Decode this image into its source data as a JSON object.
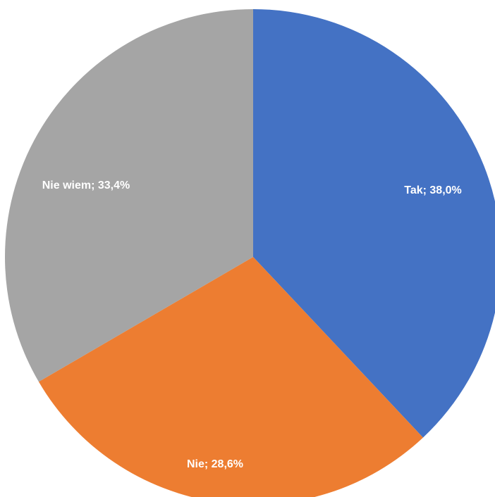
{
  "chart_data": {
    "type": "pie",
    "start_angle_deg": 0,
    "direction": "clockwise",
    "slices": [
      {
        "category": "Tak",
        "value": 38.0,
        "label": "Tak;  38,0%",
        "color": "#4472C4"
      },
      {
        "category": "Nie",
        "value": 28.6,
        "label": "Nie;  28,6%",
        "color": "#ED7D31"
      },
      {
        "category": "Nie wiem",
        "value": 33.4,
        "label": "Nie wiem; 33,4%",
        "color": "#A5A5A5"
      }
    ]
  }
}
